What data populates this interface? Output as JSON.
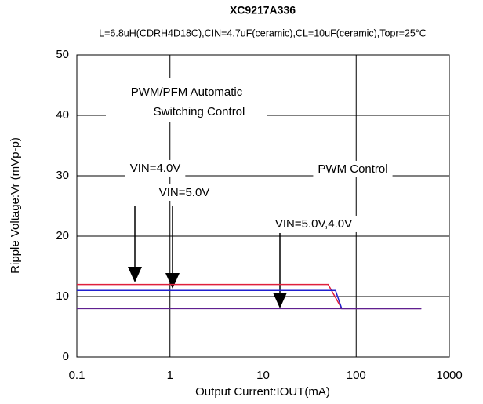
{
  "chart_data": {
    "type": "line",
    "title": "XC9217A336",
    "subtitle": "L=6.8uH(CDRH4D18C),CIN=4.7uF(ceramic),CL=10uF(ceramic),Topr=25°C",
    "x_label": "Output Current:IOUT(mA)",
    "y_label": "Ripple Voltage:Vr (mVp-p)",
    "x_scale": "log",
    "xlim": [
      0.1,
      1000
    ],
    "xticks": [
      0.1,
      1,
      10,
      100,
      1000
    ],
    "ylim": [
      0,
      50
    ],
    "yticks": [
      0,
      10,
      20,
      30,
      40,
      50
    ],
    "grid": true,
    "series": [
      {
        "color": "#e0203c",
        "x": [
          0.1,
          50,
          70,
          500
        ],
        "values": [
          12,
          12,
          8,
          8
        ]
      },
      {
        "color": "#2020d0",
        "x": [
          0.1,
          60,
          70,
          500
        ],
        "values": [
          11,
          11,
          8,
          8
        ]
      },
      {
        "color": "#602090",
        "x": [
          0.1,
          500
        ],
        "values": [
          8,
          8
        ]
      }
    ],
    "annotations": [
      "PWM/PFM  Automatic",
      "Switching Control",
      "VIN=4.0V",
      "VIN=5.0V",
      "PWM Control",
      "VIN=5.0V,4.0V"
    ]
  }
}
